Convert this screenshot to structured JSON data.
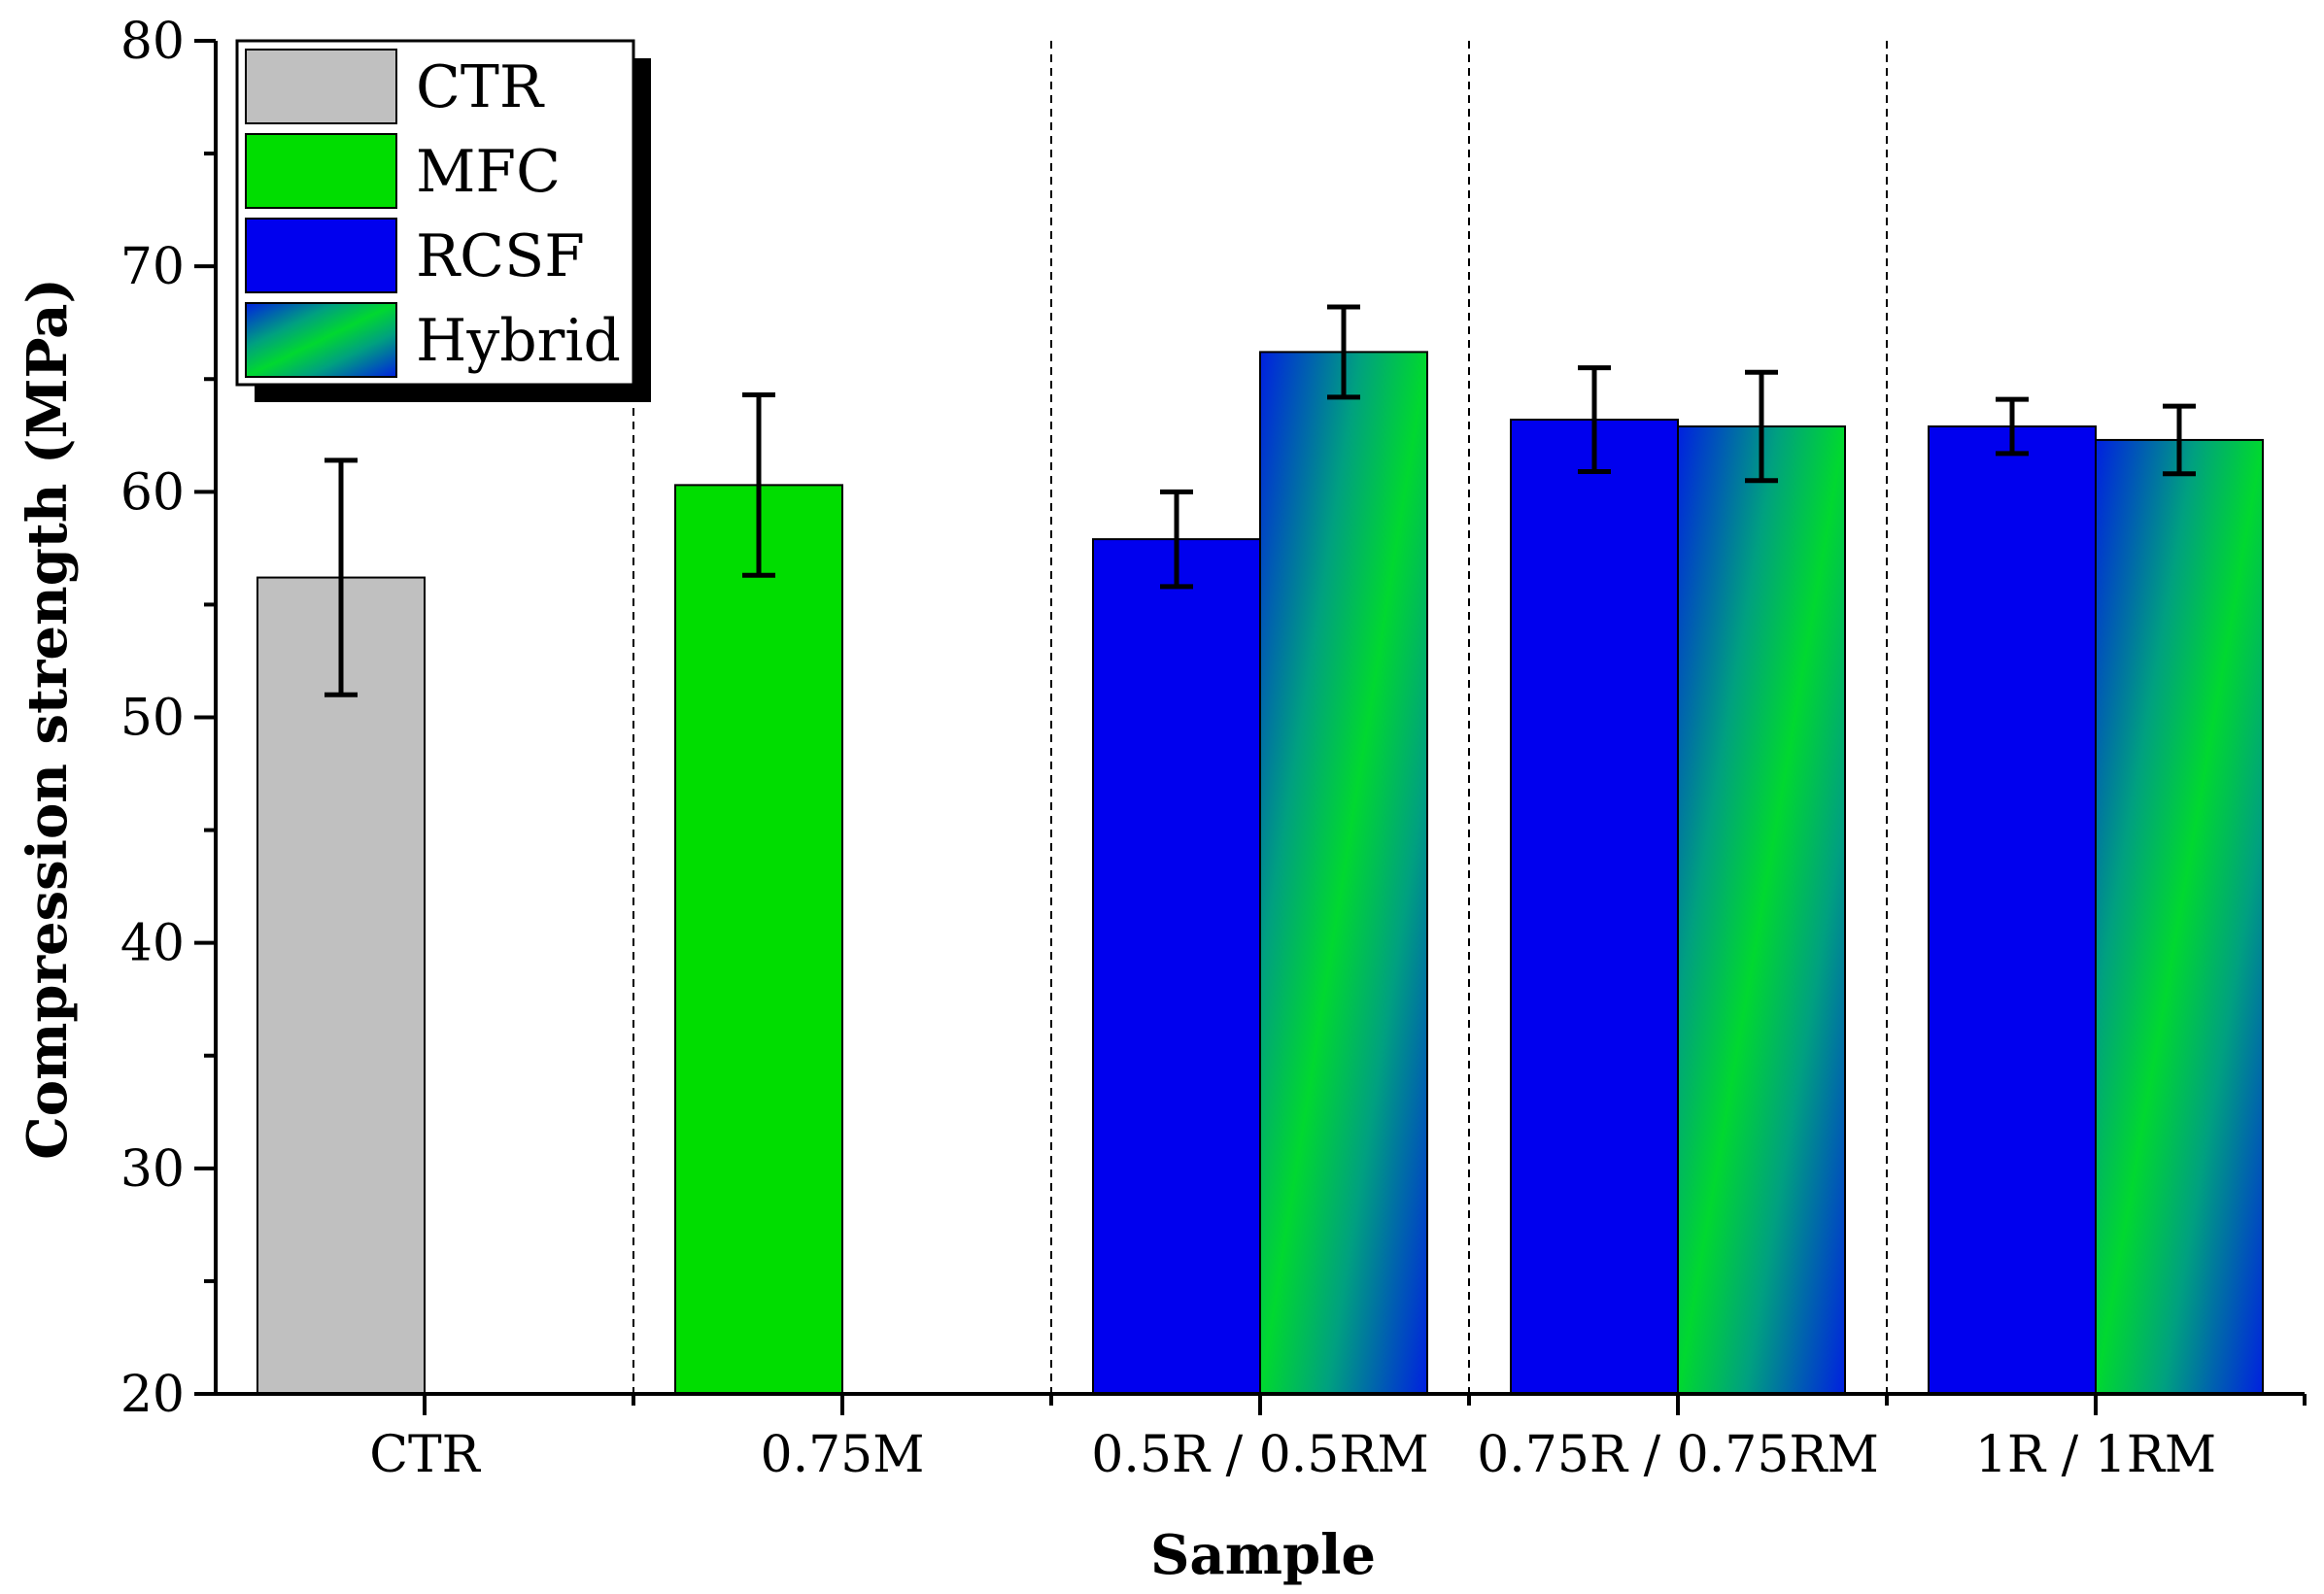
{
  "chart_data": {
    "type": "bar",
    "xlabel": "Sample",
    "ylabel": "Compression strength (MPa)",
    "ylim": [
      20,
      80
    ],
    "yticks": [
      20,
      30,
      40,
      50,
      60,
      70,
      80
    ],
    "grid": false,
    "legend_position": "top-left",
    "categories": [
      "CTR",
      "0.75M",
      "0.5R / 0.5RM",
      "0.75R / 0.75RM",
      "1R / 1RM"
    ],
    "series": [
      {
        "name": "CTR",
        "color": "#c0c0c0",
        "values": [
          56.2,
          null,
          null,
          null,
          null
        ],
        "errors": [
          5.2,
          null,
          null,
          null,
          null
        ]
      },
      {
        "name": "MFC",
        "color": "#00dd00",
        "values": [
          null,
          60.3,
          null,
          null,
          null
        ],
        "errors": [
          null,
          4.0,
          null,
          null,
          null
        ]
      },
      {
        "name": "RCSF",
        "color": "#0000ee",
        "values": [
          null,
          null,
          57.9,
          63.2,
          62.9
        ],
        "errors": [
          null,
          null,
          2.1,
          2.3,
          1.2
        ]
      },
      {
        "name": "Hybrid",
        "color": "gradient",
        "values": [
          null,
          null,
          66.2,
          62.9,
          62.3
        ],
        "errors": [
          null,
          null,
          2.0,
          2.4,
          1.5
        ]
      }
    ]
  }
}
